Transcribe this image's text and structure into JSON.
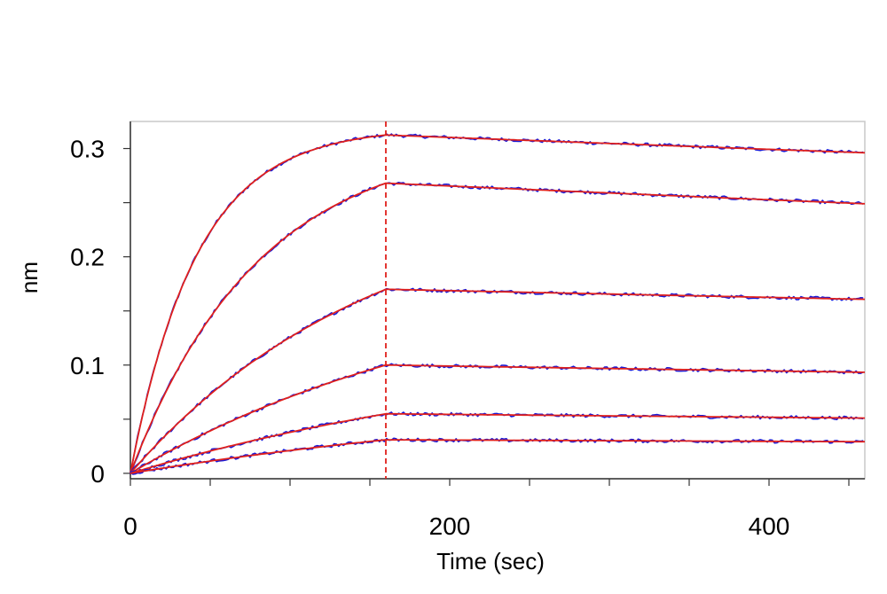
{
  "chart_data": {
    "type": "line",
    "title": "",
    "xlabel": "Time (sec)",
    "ylabel": "nm",
    "xlim": [
      0,
      460
    ],
    "ylim": [
      -0.005,
      0.325
    ],
    "x_ticks": [
      0,
      200,
      400
    ],
    "x_tick_labels": [
      "0",
      "200",
      "400"
    ],
    "y_ticks": [
      0,
      0.1,
      0.2,
      0.3
    ],
    "y_tick_labels": [
      "0",
      "0.1",
      "0.2",
      "0.3"
    ],
    "x_minor_step": 50,
    "y_minor_step": 0.05,
    "grid": false,
    "legend": "none",
    "dissociation_start": 160,
    "colors": {
      "measured": "#1a1ad6",
      "fit": "#e0201c",
      "marker": "#e0201c",
      "frame": "#c8c8c8",
      "axis": "#333333"
    },
    "series": [
      {
        "plateau": 0.3125,
        "kobs": 0.024,
        "kdiss": 0.00018
      },
      {
        "plateau": 0.268,
        "kobs": 0.0125,
        "kdiss": 0.000245
      },
      {
        "plateau": 0.17,
        "kobs": 0.0065,
        "kdiss": 0.000187
      },
      {
        "plateau": 0.1,
        "kobs": 0.0045,
        "kdiss": 0.00023
      },
      {
        "plateau": 0.055,
        "kobs": 0.0035,
        "kdiss": 0.00025
      },
      {
        "plateau": 0.031,
        "kobs": 0.003,
        "kdiss": 0.0002
      }
    ]
  }
}
